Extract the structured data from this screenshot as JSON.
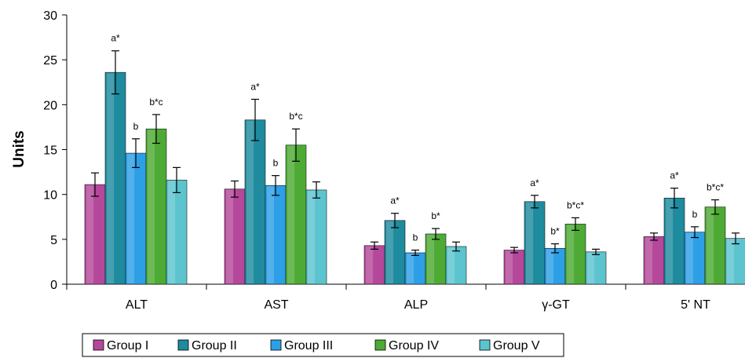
{
  "chart_data": {
    "type": "bar",
    "title": "",
    "xlabel": "",
    "ylabel": "Units",
    "ylim": [
      0,
      30
    ],
    "yticks": [
      "0",
      "5",
      "10",
      "15",
      "20",
      "25",
      "30"
    ],
    "grid": false,
    "legend_position": "bottom",
    "categories": [
      "ALT",
      "AST",
      "ALP",
      "γ-GT",
      "5' NT"
    ],
    "series": [
      {
        "name": "Group I",
        "color": "#b5489a",
        "values": [
          11.1,
          10.6,
          4.3,
          3.8,
          5.3
        ],
        "errors": [
          1.3,
          0.9,
          0.4,
          0.3,
          0.4
        ],
        "annotations": [
          "",
          "",
          "",
          "",
          ""
        ]
      },
      {
        "name": "Group II",
        "color": "#1e8b9e",
        "values": [
          23.6,
          18.3,
          7.1,
          9.2,
          9.6
        ],
        "errors": [
          2.4,
          2.3,
          0.8,
          0.7,
          1.1
        ],
        "annotations": [
          "a*",
          "a*",
          "a*",
          "a*",
          "a*"
        ]
      },
      {
        "name": "Group III",
        "color": "#2d9fe6",
        "values": [
          14.6,
          11.0,
          3.5,
          4.0,
          5.8
        ],
        "errors": [
          1.6,
          1.1,
          0.3,
          0.5,
          0.6
        ],
        "annotations": [
          "b",
          "b",
          "b",
          "b*",
          "b"
        ]
      },
      {
        "name": "Group IV",
        "color": "#4daa34",
        "values": [
          17.3,
          15.5,
          5.6,
          6.7,
          8.6
        ],
        "errors": [
          1.6,
          1.8,
          0.6,
          0.7,
          0.8
        ],
        "annotations": [
          "b*c",
          "b*c",
          "b*",
          "b*c*",
          "b*c*"
        ]
      },
      {
        "name": "Group V",
        "color": "#5cc4cf",
        "values": [
          11.6,
          10.5,
          4.2,
          3.6,
          5.1
        ],
        "errors": [
          1.4,
          0.9,
          0.5,
          0.3,
          0.6
        ],
        "annotations": [
          "",
          "",
          "",
          "",
          ""
        ]
      }
    ]
  }
}
